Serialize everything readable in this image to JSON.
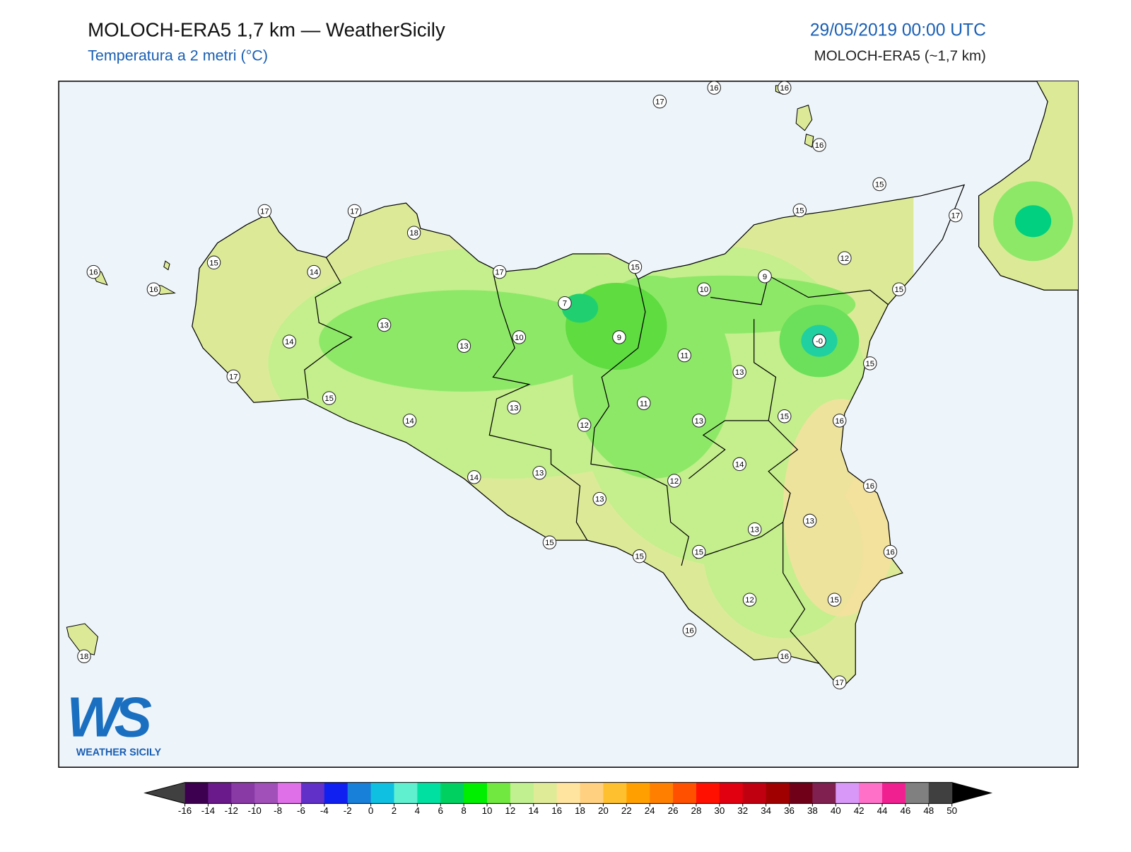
{
  "header": {
    "title": "MOLOCH-ERA5 1,7 km — WeatherSicily",
    "subtitle": "Temperatura a 2 metri (°C)",
    "datetime": "29/05/2019 00:00 UTC",
    "model": "MOLOCH-ERA5 (~1,7 km)"
  },
  "map": {
    "stations": [
      16,
      16,
      17,
      16,
      15,
      15,
      17,
      17,
      17,
      18,
      16,
      15,
      14,
      16,
      17,
      15,
      12,
      9,
      10,
      15,
      7,
      13,
      14,
      10,
      9,
      "-0",
      13,
      11,
      15,
      17,
      13,
      15,
      11,
      13,
      14,
      12,
      15,
      13,
      16,
      14,
      13,
      14,
      12,
      16,
      13,
      13,
      13,
      15,
      15,
      15,
      16,
      12,
      15,
      16,
      18,
      16,
      17
    ]
  },
  "logo": {
    "mark": "WS",
    "text": "WEATHER SICILY"
  },
  "colorbar": {
    "ticks": [
      -16,
      -14,
      -12,
      -10,
      -8,
      -6,
      -4,
      -2,
      0,
      2,
      4,
      6,
      8,
      10,
      12,
      14,
      16,
      18,
      20,
      22,
      24,
      26,
      28,
      30,
      32,
      34,
      36,
      38,
      40,
      42,
      44,
      46,
      48,
      50
    ],
    "colors": [
      "#3d0050",
      "#6a1a8a",
      "#8a3aa5",
      "#a050b8",
      "#e070e8",
      "#6030c8",
      "#1020f0",
      "#1880d8",
      "#10c0e0",
      "#60f0d0",
      "#00e0a0",
      "#00d060",
      "#00ee00",
      "#70e840",
      "#c0f090",
      "#e0eb98",
      "#ffe4a0",
      "#ffd080",
      "#ffc030",
      "#ffa000",
      "#ff8000",
      "#ff5000",
      "#ff1000",
      "#e00010",
      "#c00010",
      "#a00000",
      "#700018",
      "#802050",
      "#d898f8",
      "#ff70c8",
      "#f02090",
      "#808080",
      "#404040"
    ],
    "under_color": "#404040",
    "over_color": "#000000"
  }
}
